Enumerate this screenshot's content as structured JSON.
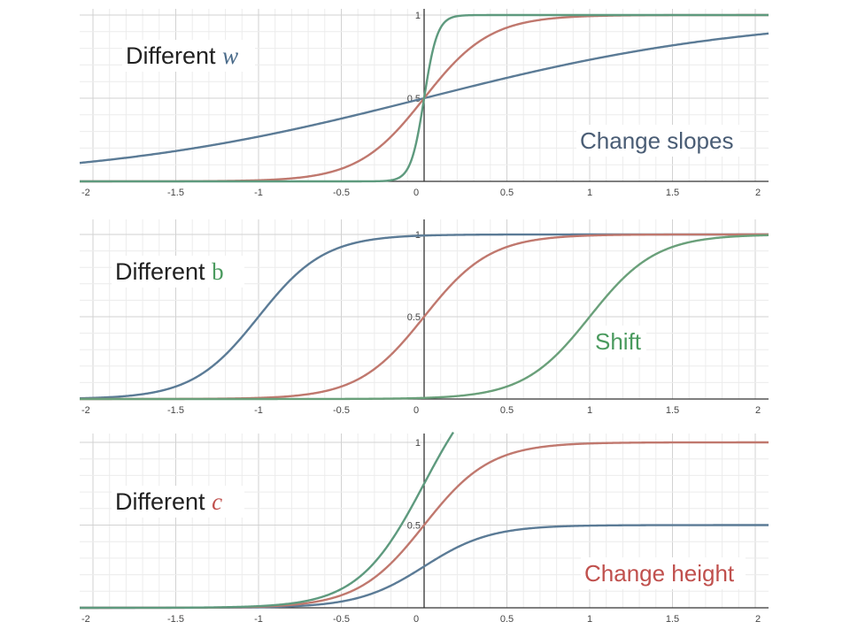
{
  "chart_data": [
    {
      "type": "line",
      "title_prefix": "Different",
      "title_symbol": "w",
      "annotation": "Change slopes",
      "xlim": [
        -2,
        2
      ],
      "ylim": [
        0,
        1
      ],
      "x_ticks": [
        "-2",
        "-1.5",
        "-1",
        "-0.5",
        "0",
        "0.5",
        "1",
        "1.5",
        "2"
      ],
      "y_ticks": [
        "0.5",
        "1"
      ],
      "grid": true,
      "colors": {
        "title_symbol": "#4a6b8a",
        "annotation": "#4a5d75"
      },
      "series": [
        {
          "w": 1,
          "b": 0,
          "c": 1,
          "color": "#5b7b96"
        },
        {
          "w": 5,
          "b": 0,
          "c": 1,
          "color": "#c0786e"
        },
        {
          "w": 25,
          "b": 0,
          "c": 1,
          "color": "#5e9a7e"
        }
      ]
    },
    {
      "type": "line",
      "title_prefix": "Different",
      "title_symbol": "b",
      "annotation": "Shift",
      "xlim": [
        -2,
        2
      ],
      "ylim": [
        0,
        1
      ],
      "x_ticks": [
        "-2",
        "-1.5",
        "-1",
        "-0.5",
        "0",
        "0.5",
        "1",
        "1.5",
        "2"
      ],
      "y_ticks": [
        "0.5",
        "1"
      ],
      "grid": true,
      "colors": {
        "title_symbol": "#4a9a5e",
        "annotation": "#4a9a5e"
      },
      "series": [
        {
          "w": 5,
          "b": 5,
          "c": 1,
          "color": "#5b7b96"
        },
        {
          "w": 5,
          "b": 0,
          "c": 1,
          "color": "#c0786e"
        },
        {
          "w": 5,
          "b": -5,
          "c": 1,
          "color": "#6aa07a"
        }
      ]
    },
    {
      "type": "line",
      "title_prefix": "Different",
      "title_symbol": "c",
      "annotation": "Change height",
      "xlim": [
        -2,
        2
      ],
      "ylim": [
        0,
        1
      ],
      "x_ticks": [
        "-2",
        "-1.5",
        "-1",
        "-0.5",
        "0",
        "0.5",
        "1",
        "1.5",
        "2"
      ],
      "y_ticks": [
        "0.5",
        "1"
      ],
      "grid": true,
      "colors": {
        "title_symbol": "#c0504d",
        "annotation": "#c0504d"
      },
      "series": [
        {
          "w": 5,
          "b": 0,
          "c": 0.5,
          "color": "#5b7b96"
        },
        {
          "w": 5,
          "b": 0,
          "c": 1,
          "color": "#c0786e"
        },
        {
          "w": 5,
          "b": 0,
          "c": 1.5,
          "color": "#5e9a7e"
        }
      ]
    }
  ]
}
